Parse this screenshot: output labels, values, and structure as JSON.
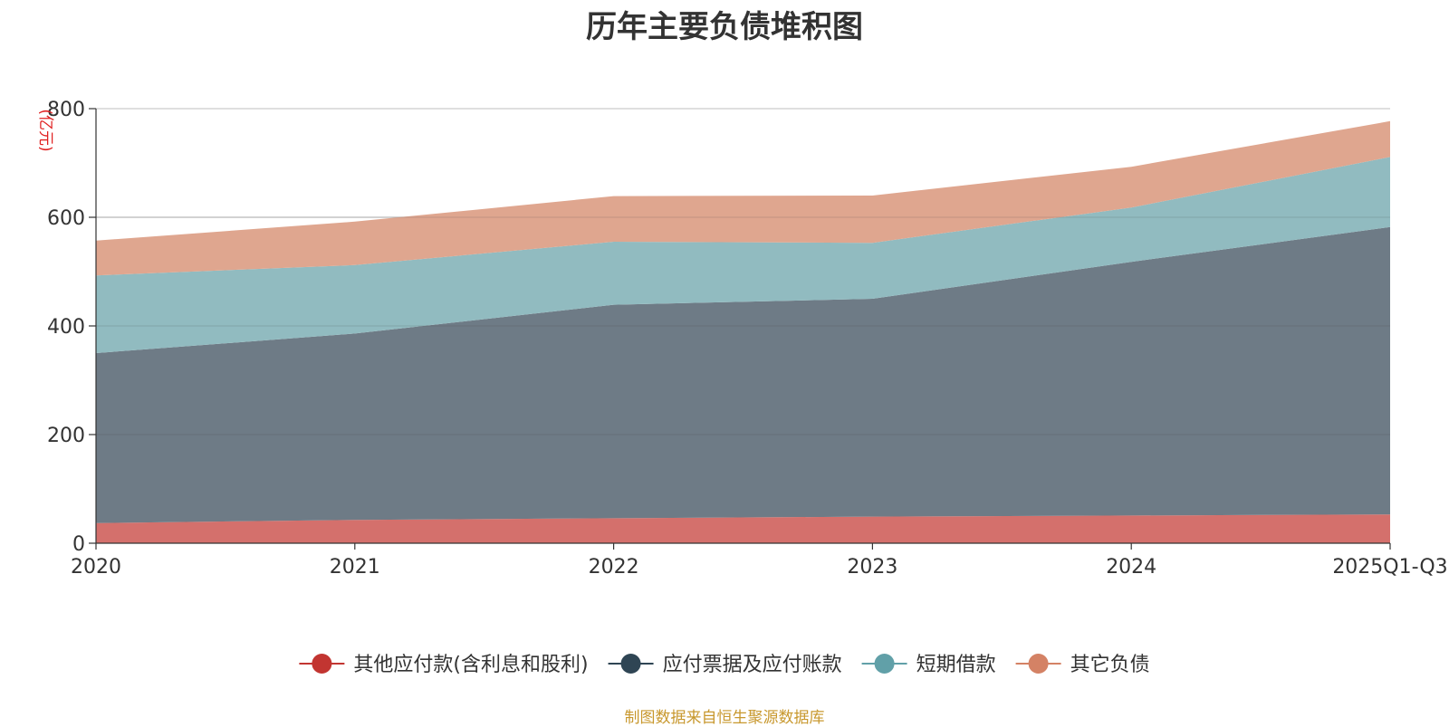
{
  "chart_data": {
    "type": "area",
    "stacked": true,
    "title": "历年主要负债堆积图",
    "ylabel": "(亿元)",
    "xlabel": "",
    "ylim": [
      0,
      800
    ],
    "yticks": [
      0,
      200,
      400,
      600,
      800
    ],
    "categories": [
      "2020",
      "2021",
      "2022",
      "2023",
      "2024",
      "2025Q1-Q3"
    ],
    "series": [
      {
        "name": "其他应付款(含利息和股利)",
        "values": [
          37,
          43,
          46,
          49,
          51,
          53
        ],
        "color": "#c23531",
        "fill": "#d4706c"
      },
      {
        "name": "应付票据及应付账款",
        "values": [
          313,
          343,
          393,
          401,
          467,
          529
        ],
        "color": "#2f4554",
        "fill": "#6e7b86"
      },
      {
        "name": "短期借款",
        "values": [
          143,
          126,
          116,
          103,
          100,
          129
        ],
        "color": "#61a0a8",
        "fill": "#91bbc0"
      },
      {
        "name": "其它负债",
        "values": [
          64,
          80,
          84,
          87,
          75,
          66
        ],
        "color": "#d48265",
        "fill": "#dfa68f"
      }
    ],
    "legend_position": "bottom",
    "grid": true
  },
  "source_note": "制图数据来自恒生聚源数据库"
}
